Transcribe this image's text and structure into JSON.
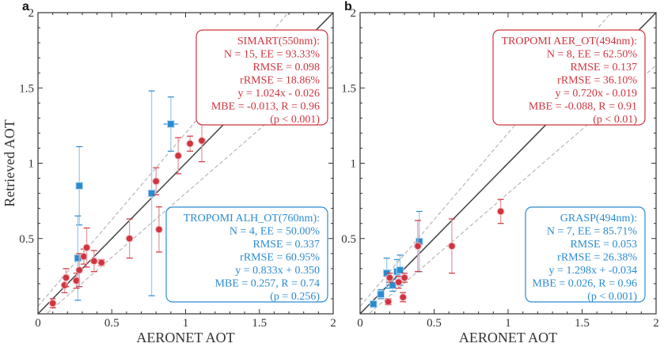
{
  "chart_data": [
    {
      "type": "scatter",
      "panel_label": "a",
      "xlabel": "AERONET AOT",
      "ylabel": "Retrieved AOT",
      "xlim": [
        0,
        2
      ],
      "ylim": [
        0,
        2
      ],
      "xticks": [
        "0",
        "0.5",
        "1",
        "1.5",
        "2"
      ],
      "yticks": [
        "",
        "0.5",
        "1",
        "1.5",
        "2"
      ],
      "reference_lines": {
        "one_to_one": true,
        "ee_envelope_dashed": true
      },
      "series": [
        {
          "name": "SIMART(550nm)",
          "color": "#d0343f",
          "marker": "circle",
          "points": [
            {
              "x": 0.1,
              "y": 0.07,
              "yerr": 0.03
            },
            {
              "x": 0.18,
              "y": 0.19,
              "yerr": 0.05
            },
            {
              "x": 0.19,
              "y": 0.24,
              "yerr": 0.06
            },
            {
              "x": 0.26,
              "y": 0.22,
              "yerr": 0.05
            },
            {
              "x": 0.28,
              "y": 0.29,
              "yerr": 0.11
            },
            {
              "x": 0.31,
              "y": 0.38,
              "yerr": 0.05
            },
            {
              "x": 0.33,
              "y": 0.44,
              "yerr": 0.13
            },
            {
              "x": 0.38,
              "y": 0.35,
              "yerr": 0.07
            },
            {
              "x": 0.43,
              "y": 0.34,
              "yerr": 0.02
            },
            {
              "x": 0.62,
              "y": 0.5,
              "yerr": 0.13
            },
            {
              "x": 0.8,
              "y": 0.88,
              "yerr": 0.09
            },
            {
              "x": 0.82,
              "y": 0.56,
              "yerr": 0.15
            },
            {
              "x": 0.95,
              "y": 1.05,
              "yerr": 0.12
            },
            {
              "x": 1.03,
              "y": 1.13,
              "yerr": 0.05
            },
            {
              "x": 1.11,
              "y": 1.15,
              "yerr": 0.14
            }
          ],
          "stats": [
            "SIMART(550nm):",
            "N = 15, EE = 93.33%",
            "RMSE = 0.098",
            "rRMSE = 18.86%",
            "y = 1.024x - 0.026",
            "MBE = -0.013, R = 0.96",
            "(p < 0.001)"
          ]
        },
        {
          "name": "TROPOMI ALH_OT(760nm)",
          "color": "#2a8bd0",
          "marker": "square",
          "points": [
            {
              "x": 0.28,
              "y": 0.85,
              "yerr": 0.26
            },
            {
              "x": 0.27,
              "y": 0.37,
              "yerr": 0.28
            },
            {
              "x": 0.77,
              "y": 0.8,
              "yerr": 0.68
            },
            {
              "x": 0.9,
              "y": 1.26,
              "yerr": 0.18,
              "xerr": 0.05
            }
          ],
          "stats": [
            "TROPOMI ALH_OT(760nm):",
            "N = 4, EE = 50.00%",
            "RMSE = 0.337",
            "rRMSE = 60.95%",
            "y = 0.833x + 0.350",
            "MBE = 0.257, R = 0.74",
            "(p = 0.256)"
          ]
        }
      ]
    },
    {
      "type": "scatter",
      "panel_label": "b",
      "xlabel": "AERONET AOT",
      "ylabel": "",
      "xlim": [
        0,
        2
      ],
      "ylim": [
        0,
        2
      ],
      "xticks": [
        "0",
        "0.5",
        "1",
        "1.5",
        "2"
      ],
      "yticks": [
        "",
        "0.5",
        "1",
        "1.5",
        "2"
      ],
      "reference_lines": {
        "one_to_one": true,
        "ee_envelope_dashed": true
      },
      "series": [
        {
          "name": "TROPOMI AER_OT(494nm)",
          "color": "#d0343f",
          "marker": "circle",
          "points": [
            {
              "x": 0.19,
              "y": 0.08,
              "yerr": 0.02
            },
            {
              "x": 0.29,
              "y": 0.11,
              "yerr": 0.03
            },
            {
              "x": 0.26,
              "y": 0.21,
              "yerr": 0.04
            },
            {
              "x": 0.3,
              "y": 0.24,
              "yerr": 0.03
            },
            {
              "x": 0.2,
              "y": 0.24,
              "yerr": 0.03
            },
            {
              "x": 0.39,
              "y": 0.45,
              "yerr": 0.17
            },
            {
              "x": 0.62,
              "y": 0.45,
              "yerr": 0.18
            },
            {
              "x": 0.95,
              "y": 0.68,
              "yerr": 0.08
            }
          ],
          "stats": [
            "TROPOMI AER_OT(494nm):",
            "N = 8, EE = 62.50%",
            "RMSE = 0.137",
            "rRMSE = 36.10%",
            "y = 0.720x - 0.019",
            "MBE = -0.088, R = 0.91",
            "(p < 0.01)"
          ]
        },
        {
          "name": "GRASP(494nm)",
          "color": "#2a8bd0",
          "marker": "square",
          "points": [
            {
              "x": 0.09,
              "y": 0.065,
              "yerr": 0.02
            },
            {
              "x": 0.14,
              "y": 0.13,
              "yerr": 0.03
            },
            {
              "x": 0.22,
              "y": 0.19,
              "yerr": 0.04
            },
            {
              "x": 0.18,
              "y": 0.27,
              "yerr": 0.1
            },
            {
              "x": 0.25,
              "y": 0.28,
              "yerr": 0.08
            },
            {
              "x": 0.27,
              "y": 0.29,
              "yerr": 0.1
            },
            {
              "x": 0.4,
              "y": 0.48,
              "yerr": 0.2
            }
          ],
          "stats": [
            "GRASP(494nm):",
            "N = 7, EE = 85.71%",
            "RMSE = 0.053",
            "rRMSE = 26.38%",
            "y = 1.298x + -0.034",
            "MBE = 0.026, R = 0.96",
            "(p < 0.001)"
          ]
        }
      ]
    }
  ]
}
